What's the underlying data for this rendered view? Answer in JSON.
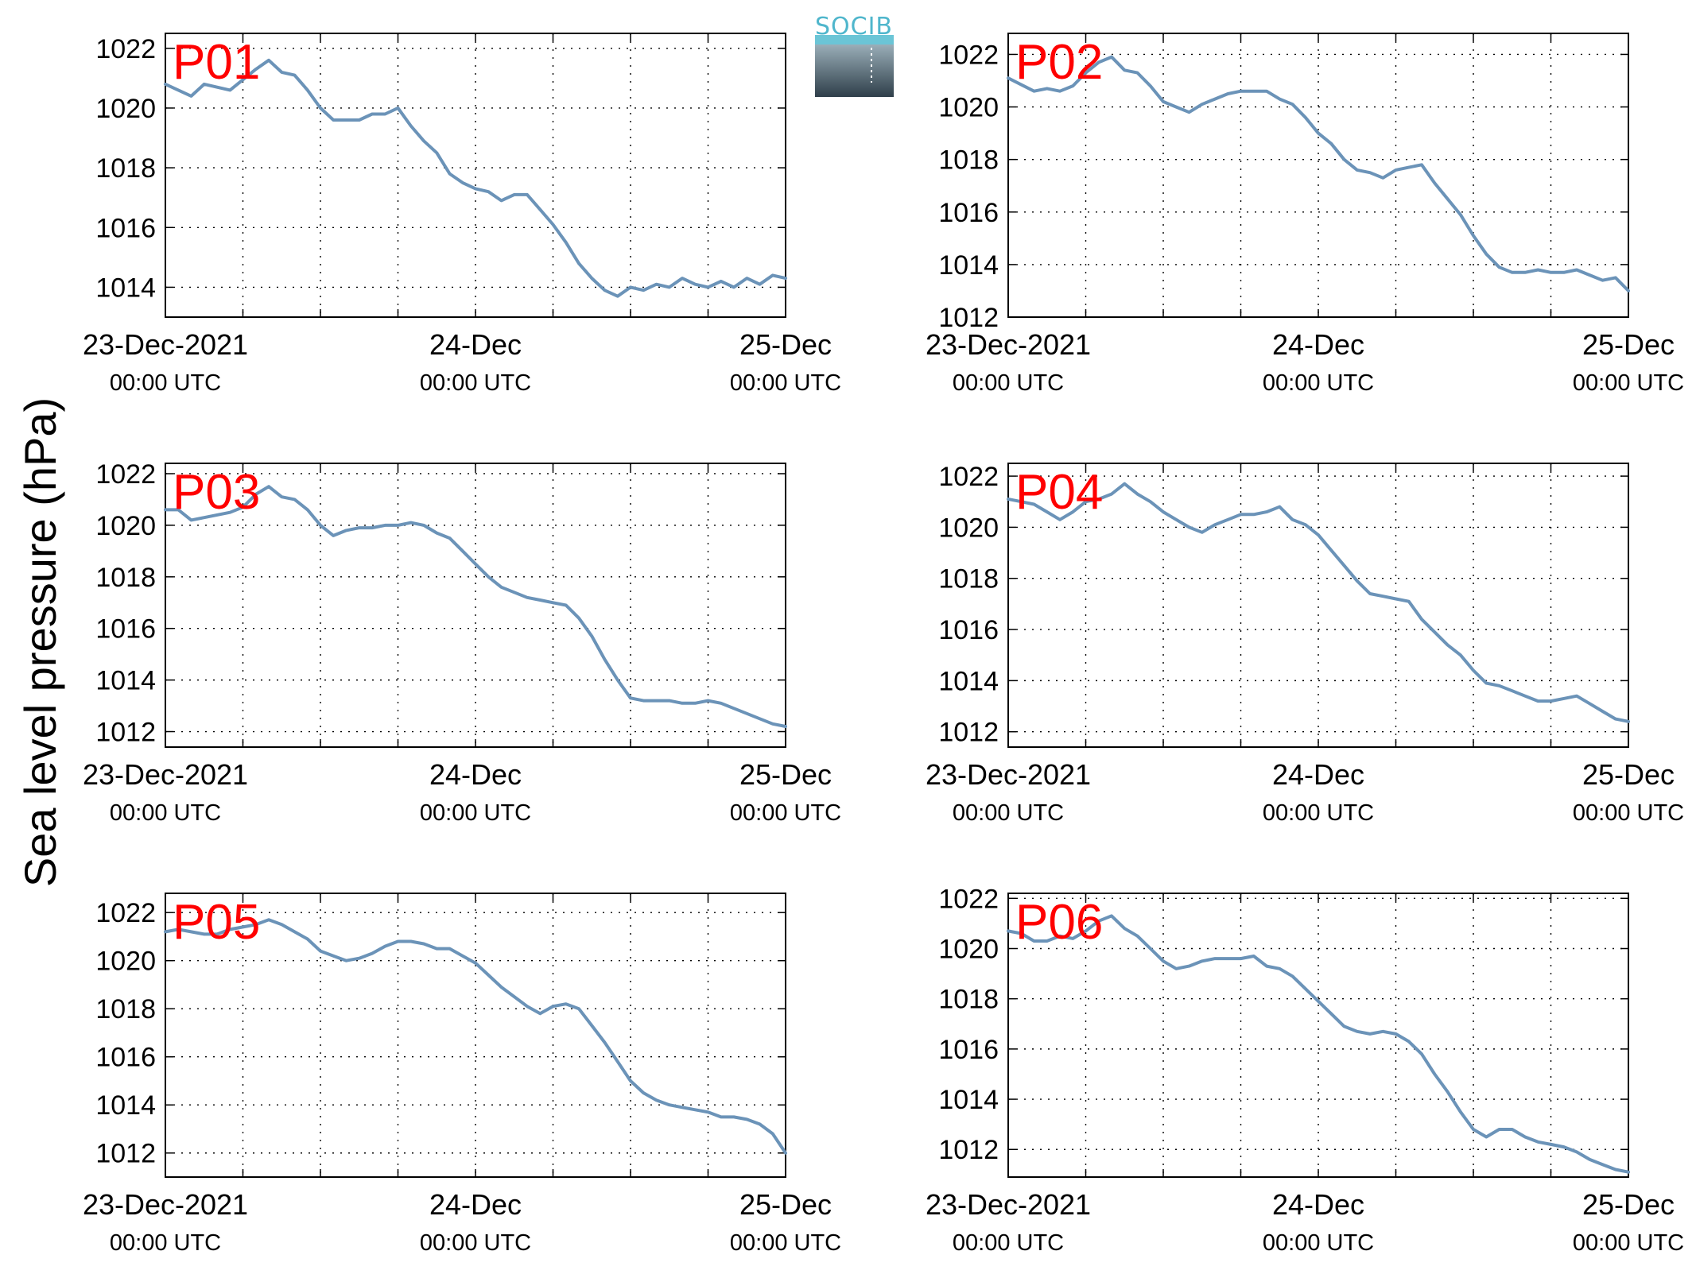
{
  "colors": {
    "line": "#6b93b8",
    "label": "#ff0000",
    "logo_text": "#4fb6cc"
  },
  "logo": {
    "text": "SOCIB"
  },
  "ylabel": "Sea level pressure (hPa)",
  "xaxis": {
    "ticks": [
      {
        "main": "23-Dec-2021",
        "sub": "00:00 UTC",
        "x": 0
      },
      {
        "main": "24-Dec",
        "sub": "00:00 UTC",
        "x": 24
      },
      {
        "main": "25-Dec",
        "sub": "00:00 UTC",
        "x": 48
      }
    ]
  },
  "chart_data": [
    {
      "type": "line",
      "title": "P01",
      "xlim": [
        0,
        48
      ],
      "ylim": [
        1013,
        1022.5
      ],
      "yticks": [
        1014,
        1016,
        1018,
        1020,
        1022
      ],
      "grid": true,
      "x_units": "hours since 23-Dec-2021 00:00 UTC",
      "x": [
        0,
        2,
        3,
        5,
        7,
        8,
        9,
        10,
        11,
        12,
        13,
        14,
        15,
        16,
        17,
        18,
        19,
        20,
        21,
        22,
        23,
        24,
        25,
        26,
        27,
        28,
        29,
        30,
        31,
        32,
        33,
        34,
        35,
        36,
        37,
        38,
        39,
        40,
        41,
        42,
        43,
        44,
        45,
        46,
        47,
        48
      ],
      "values": [
        1020.8,
        1020.4,
        1020.8,
        1020.6,
        1021.3,
        1021.6,
        1021.2,
        1021.1,
        1020.6,
        1020.0,
        1019.6,
        1019.6,
        1019.6,
        1019.8,
        1019.8,
        1020.0,
        1019.4,
        1018.9,
        1018.5,
        1017.8,
        1017.5,
        1017.3,
        1017.2,
        1016.9,
        1017.1,
        1017.1,
        1016.6,
        1016.1,
        1015.5,
        1014.8,
        1014.3,
        1013.9,
        1013.7,
        1014.0,
        1013.9,
        1014.1,
        1014.0,
        1014.3,
        1014.1,
        1014.0,
        1014.2,
        1014.0,
        1014.3,
        1014.1,
        1014.4,
        1014.3
      ]
    },
    {
      "type": "line",
      "title": "P02",
      "xlim": [
        0,
        48
      ],
      "ylim": [
        1012,
        1022.8
      ],
      "yticks": [
        1012,
        1014,
        1016,
        1018,
        1020,
        1022
      ],
      "grid": true,
      "x_units": "hours since 23-Dec-2021 00:00 UTC",
      "x": [
        0,
        2,
        3,
        4,
        5,
        6,
        7,
        8,
        9,
        10,
        11,
        12,
        13,
        14,
        15,
        16,
        17,
        18,
        19,
        20,
        21,
        22,
        23,
        24,
        25,
        26,
        27,
        28,
        29,
        30,
        31,
        32,
        33,
        34,
        35,
        36,
        37,
        38,
        39,
        40,
        41,
        42,
        43,
        44,
        45,
        46,
        47,
        48
      ],
      "values": [
        1021.1,
        1020.6,
        1020.7,
        1020.6,
        1020.8,
        1021.3,
        1021.7,
        1021.9,
        1021.4,
        1021.3,
        1020.8,
        1020.2,
        1020.0,
        1019.8,
        1020.1,
        1020.3,
        1020.5,
        1020.6,
        1020.6,
        1020.6,
        1020.3,
        1020.1,
        1019.6,
        1019.0,
        1018.6,
        1018.0,
        1017.6,
        1017.5,
        1017.3,
        1017.6,
        1017.7,
        1017.8,
        1017.1,
        1016.5,
        1015.9,
        1015.1,
        1014.4,
        1013.9,
        1013.7,
        1013.7,
        1013.8,
        1013.7,
        1013.7,
        1013.8,
        1013.6,
        1013.4,
        1013.5,
        1013.0
      ]
    },
    {
      "type": "line",
      "title": "P03",
      "xlim": [
        0,
        48
      ],
      "ylim": [
        1011.4,
        1022.4
      ],
      "yticks": [
        1012,
        1014,
        1016,
        1018,
        1020,
        1022
      ],
      "grid": true,
      "x_units": "hours since 23-Dec-2021 00:00 UTC",
      "x": [
        0,
        1,
        2,
        3,
        4,
        5,
        6,
        7,
        8,
        9,
        10,
        11,
        12,
        13,
        14,
        15,
        16,
        17,
        18,
        19,
        20,
        21,
        22,
        23,
        24,
        25,
        26,
        27,
        28,
        29,
        30,
        31,
        32,
        33,
        34,
        35,
        36,
        37,
        38,
        39,
        40,
        41,
        42,
        43,
        44,
        45,
        46,
        47,
        48
      ],
      "values": [
        1020.6,
        1020.6,
        1020.2,
        1020.3,
        1020.4,
        1020.5,
        1020.7,
        1021.2,
        1021.5,
        1021.1,
        1021.0,
        1020.6,
        1020.0,
        1019.6,
        1019.8,
        1019.9,
        1019.9,
        1020.0,
        1020.0,
        1020.1,
        1020.0,
        1019.7,
        1019.5,
        1019.0,
        1018.5,
        1018.0,
        1017.6,
        1017.4,
        1017.2,
        1017.1,
        1017.0,
        1016.9,
        1016.4,
        1015.7,
        1014.8,
        1014.0,
        1013.3,
        1013.2,
        1013.2,
        1013.2,
        1013.1,
        1013.1,
        1013.2,
        1013.1,
        1012.9,
        1012.7,
        1012.5,
        1012.3,
        1012.2
      ]
    },
    {
      "type": "line",
      "title": "P04",
      "xlim": [
        0,
        48
      ],
      "ylim": [
        1011.4,
        1022.5
      ],
      "yticks": [
        1012,
        1014,
        1016,
        1018,
        1020,
        1022
      ],
      "grid": true,
      "x_units": "hours since 23-Dec-2021 00:00 UTC",
      "x": [
        0,
        1,
        2,
        3,
        4,
        5,
        6,
        7,
        8,
        9,
        10,
        11,
        12,
        13,
        14,
        15,
        16,
        17,
        18,
        19,
        20,
        21,
        22,
        23,
        24,
        25,
        26,
        27,
        28,
        29,
        30,
        31,
        32,
        33,
        34,
        35,
        36,
        37,
        38,
        39,
        40,
        41,
        42,
        43,
        44,
        45,
        46,
        47,
        48
      ],
      "values": [
        1021.1,
        1021.0,
        1020.9,
        1020.6,
        1020.3,
        1020.6,
        1021.0,
        1021.1,
        1021.3,
        1021.7,
        1021.3,
        1021.0,
        1020.6,
        1020.3,
        1020.0,
        1019.8,
        1020.1,
        1020.3,
        1020.5,
        1020.5,
        1020.6,
        1020.8,
        1020.3,
        1020.1,
        1019.7,
        1019.1,
        1018.5,
        1017.9,
        1017.4,
        1017.3,
        1017.2,
        1017.1,
        1016.4,
        1015.9,
        1015.4,
        1015.0,
        1014.4,
        1013.9,
        1013.8,
        1013.6,
        1013.4,
        1013.2,
        1013.2,
        1013.3,
        1013.4,
        1013.1,
        1012.8,
        1012.5,
        1012.4
      ]
    },
    {
      "type": "line",
      "title": "P05",
      "xlim": [
        0,
        48
      ],
      "ylim": [
        1011,
        1022.8
      ],
      "yticks": [
        1012,
        1014,
        1016,
        1018,
        1020,
        1022
      ],
      "grid": true,
      "x_units": "hours since 23-Dec-2021 00:00 UTC",
      "x": [
        0,
        1,
        2,
        3,
        4,
        5,
        6,
        7,
        8,
        9,
        10,
        11,
        12,
        13,
        14,
        15,
        16,
        17,
        18,
        19,
        20,
        21,
        22,
        23,
        24,
        25,
        26,
        27,
        28,
        29,
        30,
        31,
        32,
        33,
        34,
        35,
        36,
        37,
        38,
        39,
        40,
        41,
        42,
        43,
        44,
        45,
        46,
        47,
        48
      ],
      "values": [
        1021.2,
        1021.3,
        1021.2,
        1021.1,
        1021.1,
        1021.3,
        1021.4,
        1021.5,
        1021.7,
        1021.5,
        1021.2,
        1020.9,
        1020.4,
        1020.2,
        1020.0,
        1020.1,
        1020.3,
        1020.6,
        1020.8,
        1020.8,
        1020.7,
        1020.5,
        1020.5,
        1020.2,
        1019.9,
        1019.4,
        1018.9,
        1018.5,
        1018.1,
        1017.8,
        1018.1,
        1018.2,
        1018.0,
        1017.3,
        1016.6,
        1015.8,
        1015.0,
        1014.5,
        1014.2,
        1014.0,
        1013.9,
        1013.8,
        1013.7,
        1013.5,
        1013.5,
        1013.4,
        1013.2,
        1012.8,
        1012.0
      ]
    },
    {
      "type": "line",
      "title": "P06",
      "xlim": [
        0,
        48
      ],
      "ylim": [
        1010.9,
        1022.2
      ],
      "yticks": [
        1012,
        1014,
        1016,
        1018,
        1020,
        1022
      ],
      "grid": true,
      "x_units": "hours since 23-Dec-2021 00:00 UTC",
      "x": [
        0,
        1,
        2,
        3,
        4,
        5,
        6,
        7,
        8,
        9,
        10,
        11,
        12,
        13,
        14,
        15,
        16,
        17,
        18,
        19,
        20,
        21,
        22,
        23,
        24,
        25,
        26,
        27,
        28,
        29,
        30,
        31,
        32,
        33,
        34,
        35,
        36,
        37,
        38,
        39,
        40,
        41,
        42,
        43,
        44,
        45,
        46,
        47,
        48
      ],
      "values": [
        1020.7,
        1020.6,
        1020.3,
        1020.3,
        1020.5,
        1020.4,
        1020.7,
        1021.1,
        1021.3,
        1020.8,
        1020.5,
        1020.0,
        1019.5,
        1019.2,
        1019.3,
        1019.5,
        1019.6,
        1019.6,
        1019.6,
        1019.7,
        1019.3,
        1019.2,
        1018.9,
        1018.4,
        1017.9,
        1017.4,
        1016.9,
        1016.7,
        1016.6,
        1016.7,
        1016.6,
        1016.3,
        1015.8,
        1015.0,
        1014.3,
        1013.5,
        1012.8,
        1012.5,
        1012.8,
        1012.8,
        1012.5,
        1012.3,
        1012.2,
        1012.1,
        1011.9,
        1011.6,
        1011.4,
        1011.2,
        1011.1
      ]
    }
  ]
}
